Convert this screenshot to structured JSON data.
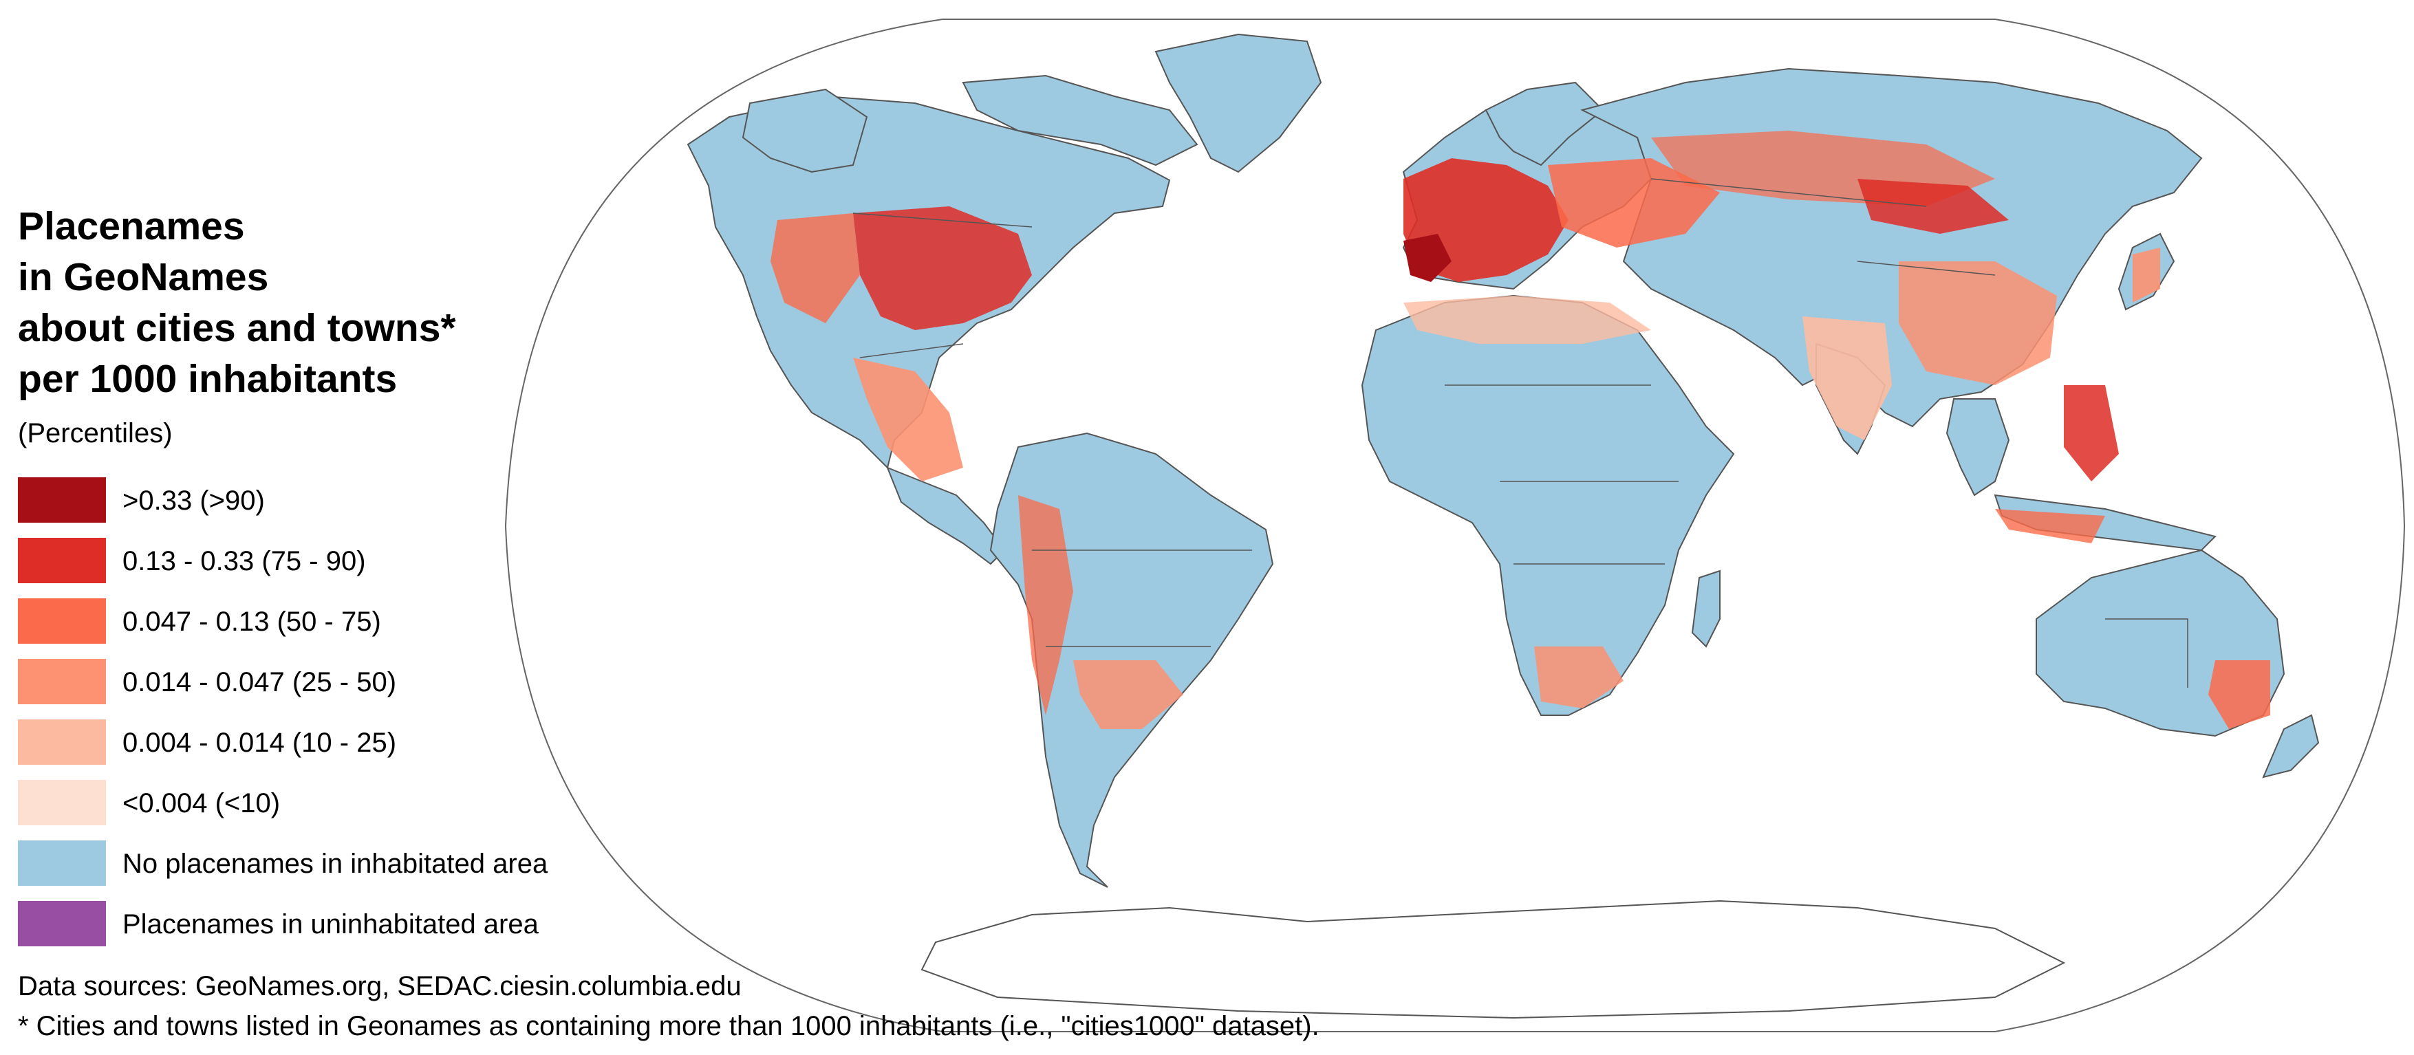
{
  "title_lines": [
    "Placenames",
    "in GeoNames",
    "about cities and towns*",
    "per 1000 inhabitants"
  ],
  "subtitle": "(Percentiles)",
  "legend": [
    {
      "label": ">0.33 (>90)",
      "color": "#a50f15"
    },
    {
      "label": "0.13 - 0.33 (75 - 90)",
      "color": "#de2d26"
    },
    {
      "label": "0.047 - 0.13 (50 - 75)",
      "color": "#fb6a4a"
    },
    {
      "label": "0.014 - 0.047 (25 - 50)",
      "color": "#fc9272"
    },
    {
      "label": "0.004 - 0.014 (10 - 25)",
      "color": "#fcbba1"
    },
    {
      "label": "<0.004 (<10)",
      "color": "#fee0d2"
    },
    {
      "label": "No placenames in inhabitated area",
      "color": "#9ecae1"
    },
    {
      "label": "Placenames in uninhabitated area",
      "color": "#984ea3"
    }
  ],
  "sources": "Data sources: GeoNames.org, SEDAC.ciesin.columbia.edu",
  "footnote": "* Cities and towns listed in Geonames as containing more than 1000 inhabitants (i.e., \"cities1000\" dataset).",
  "map_colors": {
    "land": "#9ecae1",
    "border": "#555555",
    "outline": "#444444",
    "background": "#ffffff"
  }
}
